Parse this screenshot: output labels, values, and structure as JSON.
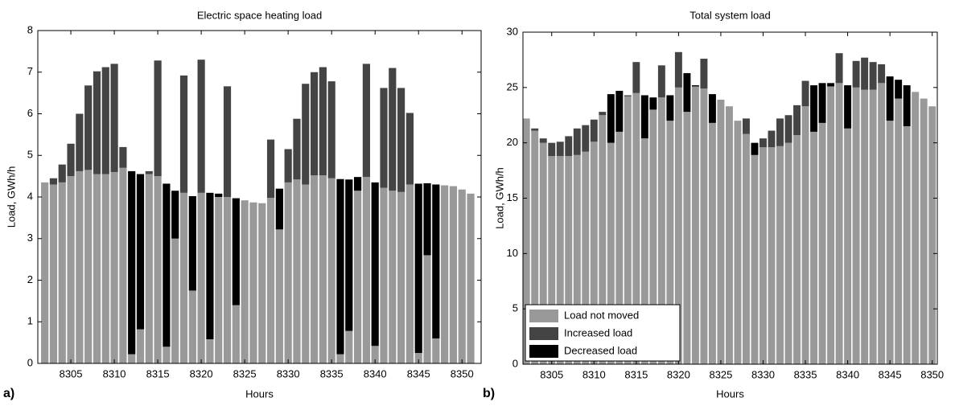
{
  "chart_data": [
    {
      "type": "bar",
      "stacked": true,
      "label": "a)",
      "title": "Electric space heating load",
      "xlabel": "Hours",
      "ylabel": "Load, GWh/h",
      "x": [
        8302,
        8303,
        8304,
        8305,
        8306,
        8307,
        8308,
        8309,
        8310,
        8311,
        8312,
        8313,
        8314,
        8315,
        8316,
        8317,
        8318,
        8319,
        8320,
        8321,
        8322,
        8323,
        8324,
        8325,
        8326,
        8327,
        8328,
        8329,
        8330,
        8331,
        8332,
        8333,
        8334,
        8335,
        8336,
        8337,
        8338,
        8339,
        8340,
        8341,
        8342,
        8343,
        8344,
        8345,
        8346,
        8347,
        8348,
        8349,
        8350,
        8351
      ],
      "series": [
        {
          "color": "#999999",
          "values": [
            4.35,
            4.3,
            4.35,
            4.5,
            4.62,
            4.65,
            4.55,
            4.55,
            4.6,
            4.7,
            0.22,
            0.82,
            4.55,
            4.5,
            0.4,
            3.0,
            4.1,
            1.75,
            4.1,
            0.58,
            4.0,
            4.0,
            1.4,
            3.92,
            3.87,
            3.85,
            3.98,
            3.22,
            4.35,
            4.42,
            4.3,
            4.52,
            4.52,
            4.45,
            0.22,
            0.78,
            4.15,
            4.48,
            0.42,
            4.22,
            4.15,
            4.12,
            4.3,
            0.25,
            2.6,
            0.6,
            4.28,
            4.26,
            4.18,
            4.08
          ]
        },
        {
          "color": "#444444",
          "values": [
            null,
            0.15,
            0.43,
            0.78,
            1.38,
            2.03,
            2.47,
            2.57,
            2.6,
            0.5,
            null,
            null,
            0.07,
            2.78,
            null,
            null,
            2.82,
            null,
            3.2,
            null,
            null,
            2.66,
            null,
            null,
            null,
            null,
            1.4,
            null,
            0.8,
            1.46,
            2.42,
            2.48,
            2.6,
            2.33,
            null,
            null,
            null,
            2.72,
            null,
            2.4,
            2.95,
            2.5,
            1.72,
            null,
            null,
            null,
            null,
            null,
            null,
            null
          ]
        },
        {
          "color": "#000000",
          "values": [
            null,
            null,
            null,
            null,
            null,
            null,
            null,
            null,
            null,
            null,
            4.4,
            3.73,
            null,
            null,
            3.92,
            1.15,
            null,
            2.27,
            null,
            3.52,
            0.08,
            null,
            2.57,
            null,
            null,
            null,
            null,
            0.98,
            null,
            null,
            null,
            null,
            null,
            null,
            4.21,
            3.64,
            0.33,
            null,
            3.93,
            null,
            null,
            null,
            null,
            4.07,
            1.73,
            3.7,
            null,
            null,
            null,
            null
          ]
        }
      ],
      "xlim": [
        8301.2,
        8352.2
      ],
      "ylim": [
        0,
        8
      ],
      "xticks": [
        8305,
        8310,
        8315,
        8320,
        8325,
        8330,
        8335,
        8340,
        8345,
        8350
      ],
      "yticks": [
        0,
        1,
        2,
        3,
        4,
        5,
        6,
        7,
        8
      ]
    },
    {
      "type": "bar",
      "stacked": true,
      "label": "b)",
      "title": "Total system load",
      "xlabel": "Hours",
      "ylabel": "Load, GWh/h",
      "legend": "lower left",
      "x": [
        8302,
        8303,
        8304,
        8305,
        8306,
        8307,
        8308,
        8309,
        8310,
        8311,
        8312,
        8313,
        8314,
        8315,
        8316,
        8317,
        8318,
        8319,
        8320,
        8321,
        8322,
        8323,
        8324,
        8325,
        8326,
        8327,
        8328,
        8329,
        8330,
        8331,
        8332,
        8333,
        8334,
        8335,
        8336,
        8337,
        8338,
        8339,
        8340,
        8341,
        8342,
        8343,
        8344,
        8345,
        8346,
        8347,
        8348,
        8349,
        8350
      ],
      "series": [
        {
          "name": "Load not moved",
          "color": "#999999",
          "values": [
            22.2,
            21.1,
            20.0,
            18.8,
            18.8,
            18.8,
            18.9,
            19.2,
            20.1,
            22.5,
            20.0,
            21.0,
            24.2,
            24.5,
            20.4,
            23.0,
            24.1,
            22.0,
            25.0,
            22.8,
            25.1,
            24.9,
            21.8,
            23.9,
            23.3,
            22.0,
            20.8,
            18.9,
            19.6,
            19.6,
            19.7,
            20.0,
            20.7,
            23.3,
            21.0,
            21.8,
            25.1,
            25.4,
            21.3,
            25.0,
            24.8,
            24.8,
            25.4,
            22.0,
            24.0,
            21.5,
            24.6,
            24.0,
            23.3
          ]
        },
        {
          "name": "Increased load",
          "color": "#444444",
          "values": [
            null,
            0.2,
            0.4,
            1.2,
            1.3,
            1.8,
            2.4,
            2.4,
            2.0,
            0.3,
            null,
            null,
            0.1,
            2.8,
            null,
            null,
            2.9,
            null,
            3.2,
            null,
            null,
            2.7,
            null,
            null,
            null,
            null,
            1.4,
            null,
            0.8,
            1.5,
            2.5,
            2.5,
            2.7,
            2.3,
            null,
            null,
            null,
            2.7,
            null,
            2.4,
            2.9,
            2.5,
            1.7,
            null,
            null,
            null,
            null,
            null,
            null
          ]
        },
        {
          "name": "Decreased load",
          "color": "#000000",
          "values": [
            null,
            null,
            null,
            null,
            null,
            null,
            null,
            null,
            null,
            null,
            4.4,
            3.7,
            null,
            null,
            3.9,
            1.1,
            null,
            2.3,
            null,
            3.5,
            0.1,
            null,
            2.6,
            null,
            null,
            null,
            null,
            1.1,
            null,
            null,
            null,
            null,
            null,
            null,
            4.2,
            3.6,
            0.3,
            null,
            3.9,
            null,
            null,
            null,
            null,
            4.0,
            1.7,
            3.7,
            null,
            null,
            null
          ]
        }
      ],
      "xlim": [
        8301.6,
        8350.6
      ],
      "ylim": [
        0,
        30
      ],
      "xticks": [
        8305,
        8310,
        8315,
        8320,
        8325,
        8330,
        8335,
        8340,
        8345,
        8350
      ],
      "yticks": [
        0,
        5,
        10,
        15,
        20,
        25,
        30
      ]
    }
  ]
}
